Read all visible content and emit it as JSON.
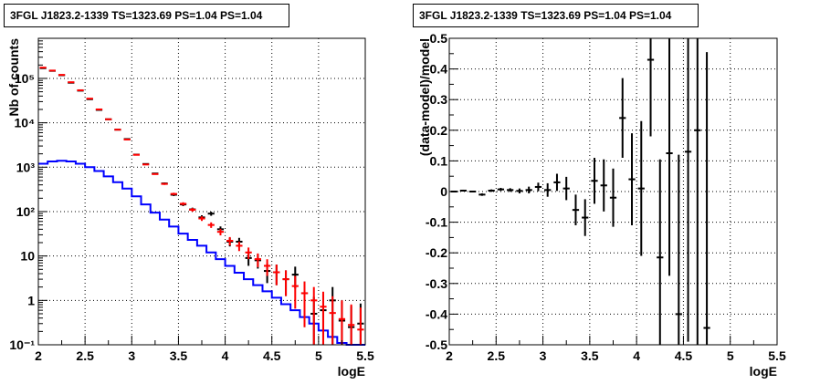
{
  "chart_data": [
    {
      "type": "line",
      "title": "3FGL J1823.2-1339 TS=1323.69 PS=1.04 PS=1.04",
      "xlabel": "logE",
      "ylabel": "Nb of counts",
      "xlim": [
        2,
        5.5
      ],
      "ylim": [
        0.1,
        800000
      ],
      "yscale": "log",
      "grid": true,
      "x_ticks": [
        "2",
        "2.5",
        "3",
        "3.5",
        "4",
        "4.5",
        "5",
        "5.5"
      ],
      "y_ticks": [
        "10⁻¹",
        "1",
        "10",
        "10²",
        "10³",
        "10⁴",
        "10⁵"
      ],
      "bin_edges": [
        2.0,
        2.1,
        2.2,
        2.3,
        2.4,
        2.5,
        2.6,
        2.7,
        2.8,
        2.9,
        3.0,
        3.1,
        3.2,
        3.3,
        3.4,
        3.5,
        3.6,
        3.7,
        3.8,
        3.9,
        4.0,
        4.1,
        4.2,
        4.3,
        4.4,
        4.5,
        4.6,
        4.7,
        4.8,
        4.9,
        5.0,
        5.1,
        5.2,
        5.3,
        5.4,
        5.5
      ],
      "series": [
        {
          "color": "#ff0000",
          "style": "errorbar",
          "values": [
            175000,
            150000,
            120000,
            82000,
            54000,
            35000,
            20000,
            12000,
            7000,
            4200,
            1900,
            1150,
            700,
            420,
            250,
            150,
            110,
            70,
            50,
            35,
            22,
            17,
            12,
            8.5,
            6.0,
            4.3,
            3.0,
            2.1,
            1.45,
            1.0,
            0.72,
            0.52,
            0.38,
            0.28,
            0.22
          ],
          "errors": [
            420,
            390,
            350,
            290,
            230,
            190,
            140,
            110,
            85,
            65,
            44,
            34,
            27,
            21,
            16,
            12,
            10.5,
            8.4,
            7.1,
            5.9,
            4.7,
            4.1,
            3.5,
            2.9,
            2.45,
            2.1,
            1.75,
            1.45,
            1.2,
            1.0,
            0.85,
            0.72,
            0.62,
            0.53,
            0.47
          ]
        },
        {
          "color": "#000000",
          "style": "errorbar",
          "values": [
            170000,
            148000,
            118000,
            80000,
            53000,
            34000,
            19500,
            12000,
            7000,
            4300,
            1920,
            1180,
            720,
            430,
            240,
            145,
            112,
            74,
            90,
            40,
            21,
            21,
            9,
            8,
            4.6,
            4.3,
            3.0,
            3.8,
            1.45,
            0.5,
            0.6,
            1.0,
            0.35,
            0.25,
            0.3
          ],
          "errors": [
            410,
            385,
            345,
            285,
            230,
            185,
            140,
            110,
            85,
            65,
            44,
            34,
            27,
            21,
            16,
            12,
            10.6,
            8.6,
            9.5,
            6.3,
            4.6,
            4.6,
            3.0,
            2.8,
            2.15,
            2.1,
            1.75,
            1.95,
            1.2,
            0.7,
            0.77,
            1.0,
            0.6,
            0.5,
            0.55
          ]
        },
        {
          "color": "#0000ff",
          "style": "step",
          "values": [
            1200,
            1350,
            1400,
            1350,
            1200,
            1000,
            820,
            620,
            460,
            330,
            220,
            145,
            95,
            66,
            46,
            32,
            23,
            17,
            12,
            8.5,
            6.0,
            4.2,
            3.0,
            2.2,
            1.6,
            1.15,
            0.82,
            0.6,
            0.42,
            0.3,
            0.21,
            0.15,
            0.11,
            0.08,
            0.06
          ]
        }
      ]
    },
    {
      "type": "scatter",
      "title": "3FGL J1823.2-1339 TS=1323.69 PS=1.04 PS=1.04",
      "xlabel": "logE",
      "ylabel": "(data-model)/model",
      "xlim": [
        2,
        5.5
      ],
      "ylim": [
        -0.5,
        0.5
      ],
      "grid": true,
      "x_ticks": [
        "2",
        "2.5",
        "3",
        "3.5",
        "4",
        "4.5",
        "5",
        "5.5"
      ],
      "y_ticks": [
        "-0.5",
        "-0.4",
        "-0.3",
        "-0.2",
        "-0.1",
        "0",
        "0.1",
        "0.2",
        "0.3",
        "0.4",
        "0.5"
      ],
      "series": [
        {
          "color": "#000000",
          "x": [
            2.05,
            2.15,
            2.25,
            2.35,
            2.45,
            2.55,
            2.65,
            2.75,
            2.85,
            2.95,
            3.05,
            3.15,
            3.25,
            3.35,
            3.45,
            3.55,
            3.65,
            3.75,
            3.85,
            3.95,
            4.05,
            4.15,
            4.25,
            4.35,
            4.45,
            4.55,
            4.65,
            4.75
          ],
          "y": [
            0.0,
            0.003,
            0.0,
            -0.01,
            0.003,
            0.007,
            0.005,
            0.002,
            0.005,
            0.015,
            0.005,
            0.03,
            0.01,
            -0.06,
            -0.085,
            0.035,
            0.02,
            -0.02,
            0.24,
            0.04,
            0.01,
            0.43,
            -0.215,
            0.125,
            -0.4,
            0.13,
            0.2,
            -0.445
          ],
          "errors": [
            0.003,
            0.003,
            0.003,
            0.004,
            0.004,
            0.005,
            0.006,
            0.008,
            0.011,
            0.014,
            0.022,
            0.028,
            0.038,
            0.05,
            0.06,
            0.075,
            0.085,
            0.095,
            0.13,
            0.15,
            0.22,
            0.25,
            0.32,
            0.4,
            0.52,
            0.62,
            0.75,
            0.9
          ]
        }
      ]
    }
  ]
}
